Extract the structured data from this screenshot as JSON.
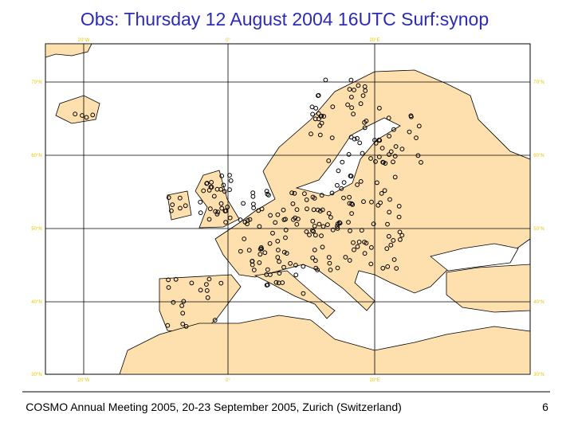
{
  "title": "Obs: Thursday 12 August 2004 16UTC Surf:synop",
  "map": {
    "lon_labels": [
      "20°W",
      "0°",
      "20°E"
    ],
    "lat_labels": [
      "70°N",
      "60°N",
      "50°N",
      "40°N",
      "30°N"
    ]
  },
  "footer": {
    "text": "COSMO Annual Meeting 2005, 20-23 September 2005, Zurich (Switzerland)",
    "page": "6"
  }
}
